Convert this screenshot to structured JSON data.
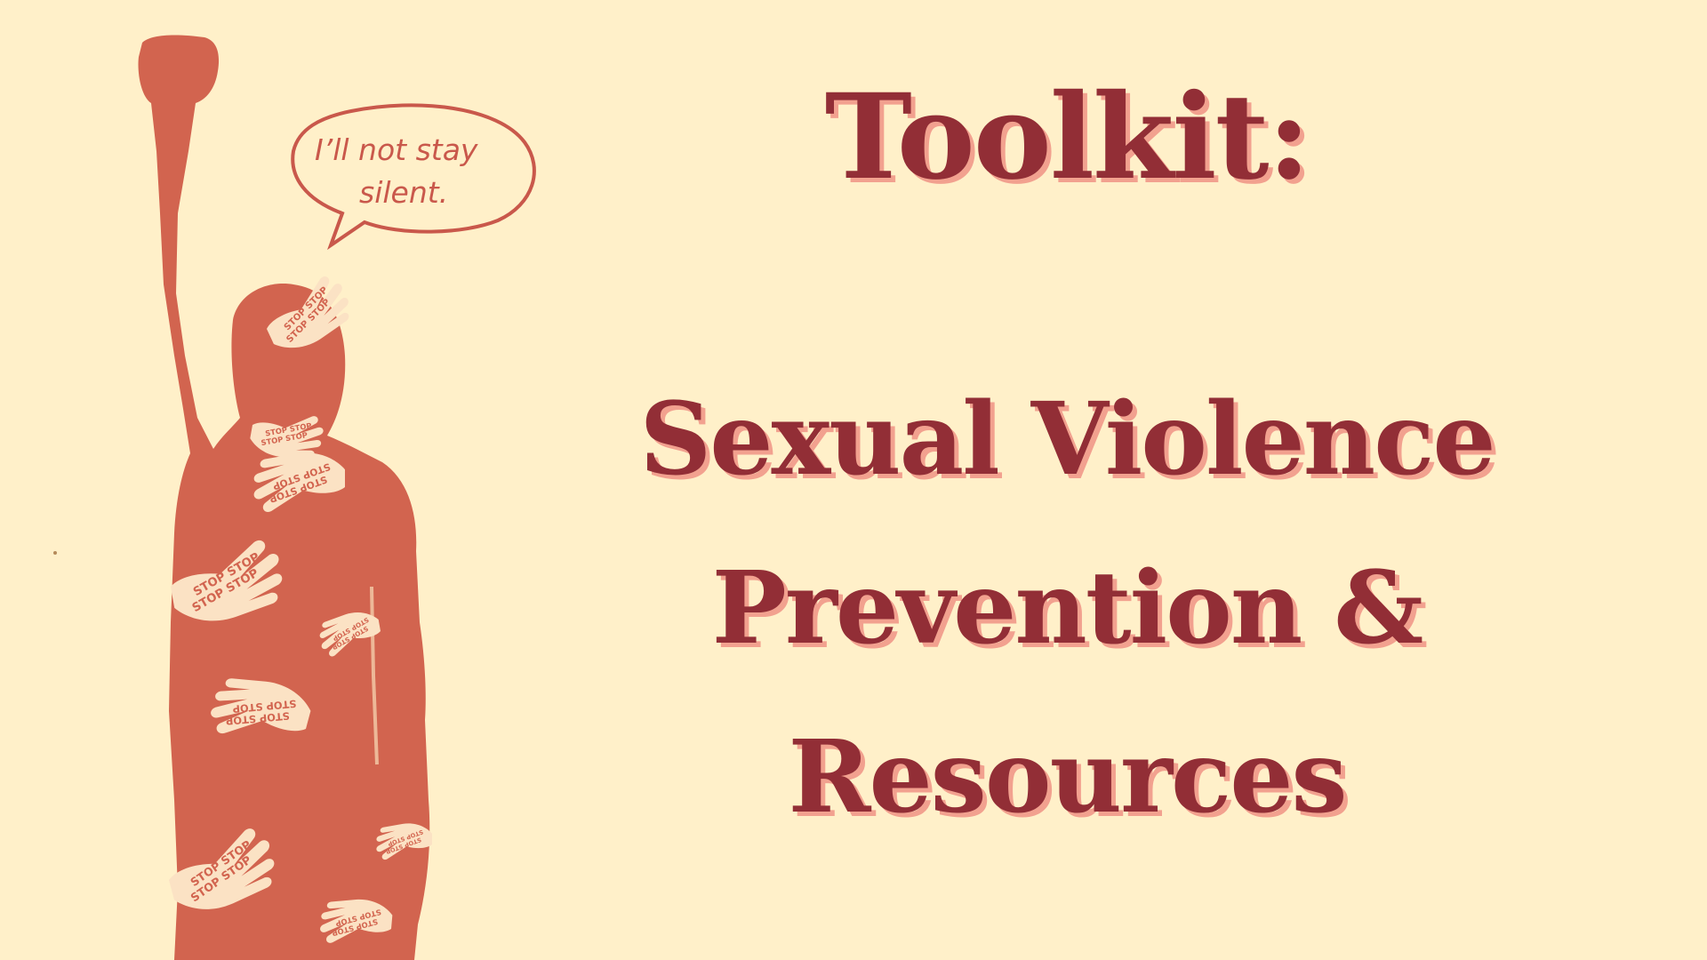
{
  "title": {
    "heading": "Toolkit:",
    "lines": [
      "Sexual Violence",
      "Prevention &",
      "Resources"
    ]
  },
  "speech_bubble": {
    "line1": "I’ll not stay",
    "line2": "silent."
  },
  "hand_stamp_text": "STOP STOP STOP",
  "colors": {
    "background": "#fff0c9",
    "figure": "#d2644f",
    "title": "#922e36",
    "title_shadow": "#f2a18f",
    "hands": "#fbe2c4"
  }
}
